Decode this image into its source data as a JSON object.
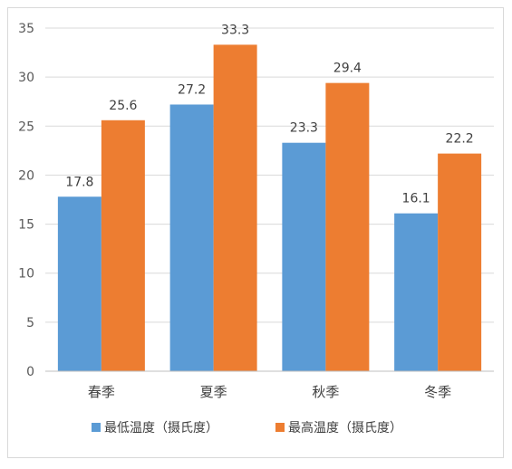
{
  "chart_data": {
    "type": "bar",
    "title": "",
    "xlabel": "",
    "ylabel": "",
    "categories": [
      "春季",
      "夏季",
      "秋季",
      "冬季"
    ],
    "series": [
      {
        "name": "最低温度（摄氏度）",
        "values": [
          17.8,
          27.2,
          23.3,
          16.1
        ],
        "color": "#5b9bd5"
      },
      {
        "name": "最高温度（摄氏度）",
        "values": [
          25.6,
          33.3,
          29.4,
          22.2
        ],
        "color": "#ed7d31"
      }
    ],
    "ylim": [
      0,
      35
    ],
    "yticks": [
      0,
      5,
      10,
      15,
      20,
      25,
      30,
      35
    ],
    "grid": true,
    "legend": "bottom",
    "data_labels": true
  }
}
